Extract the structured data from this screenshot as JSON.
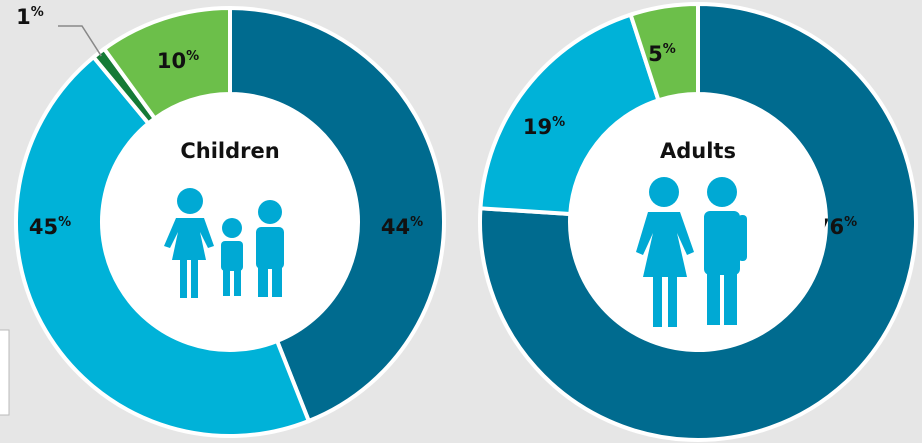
{
  "chart_data": [
    {
      "type": "pie",
      "title": "Children",
      "values": [
        44,
        45,
        1,
        10
      ],
      "value_labels": [
        "44%",
        "45%",
        "1%",
        "10%"
      ],
      "colors": [
        "#006b8f",
        "#00b2d8",
        "#157a36",
        "#6cbf4a"
      ]
    },
    {
      "type": "pie",
      "title": "Adults",
      "values": [
        76,
        19,
        5
      ],
      "value_labels": [
        "76%",
        "19%",
        "5%"
      ],
      "colors": [
        "#006b8f",
        "#00b2d8",
        "#6cbf4a"
      ]
    }
  ]
}
